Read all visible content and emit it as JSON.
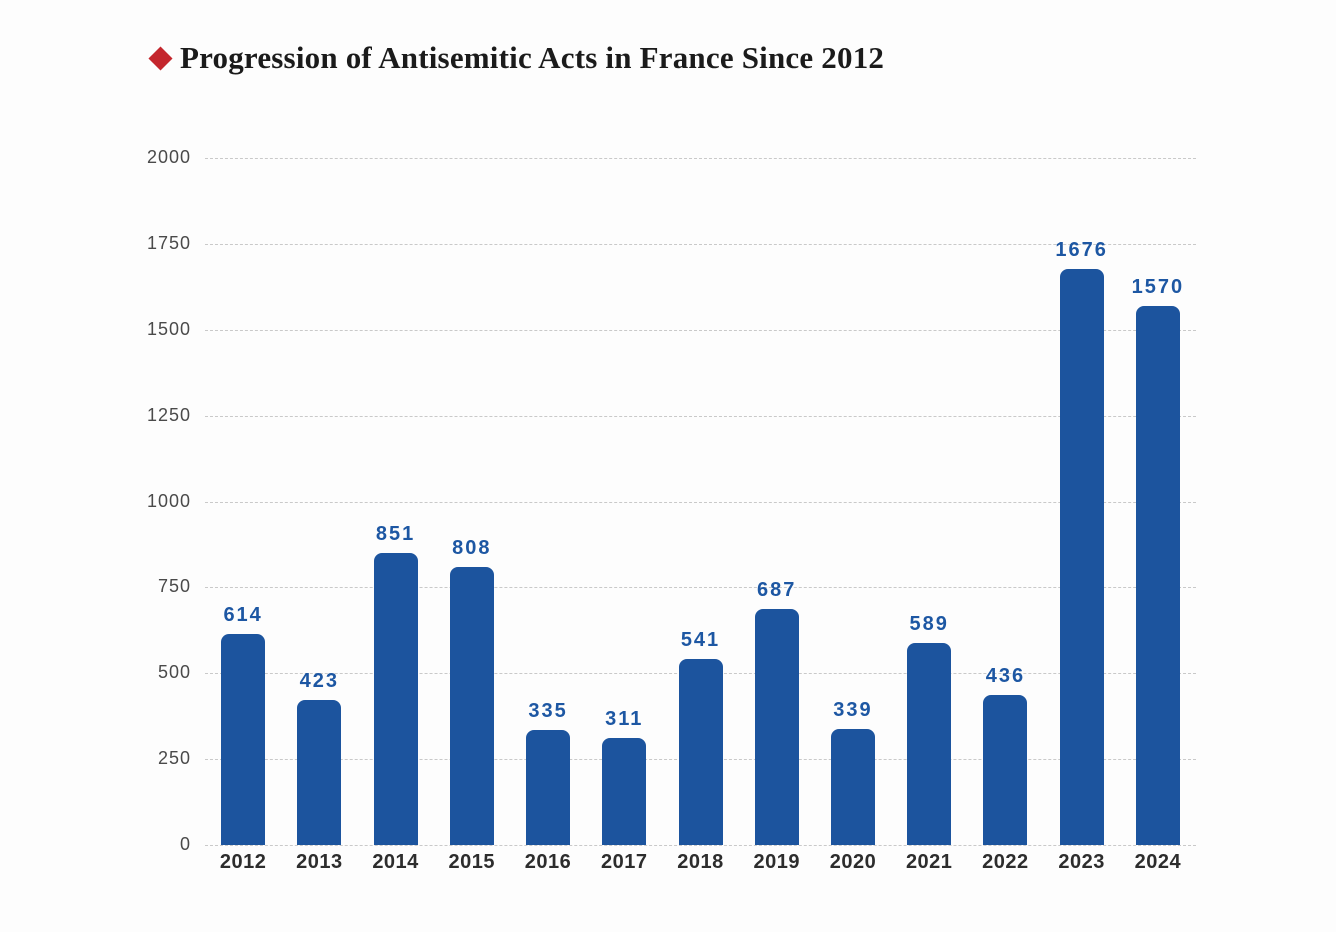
{
  "header": {
    "title": "Progression of Antisemitic Acts in France Since 2012",
    "bullet_color": "#c4262d"
  },
  "chart_data": {
    "type": "bar",
    "title": "Progression of Antisemitic Acts in France Since 2012",
    "categories": [
      "2012",
      "2013",
      "2014",
      "2015",
      "2016",
      "2017",
      "2018",
      "2019",
      "2020",
      "2021",
      "2022",
      "2023",
      "2024"
    ],
    "values": [
      614,
      423,
      851,
      808,
      335,
      311,
      541,
      687,
      339,
      589,
      436,
      1676,
      1570
    ],
    "xlabel": "",
    "ylabel": "",
    "ylim": [
      0,
      2000
    ],
    "yticks": [
      0,
      250,
      500,
      750,
      1000,
      1250,
      1500,
      1750,
      2000
    ],
    "grid": "horizontal-dashed",
    "legend": "none",
    "bar_color": "#1c549e",
    "value_label_color": "#1d57a3",
    "ytick_color": "#4a4a4a",
    "xtick_color": "#2d2d2d",
    "gridline_color": "#c9c9c9"
  }
}
